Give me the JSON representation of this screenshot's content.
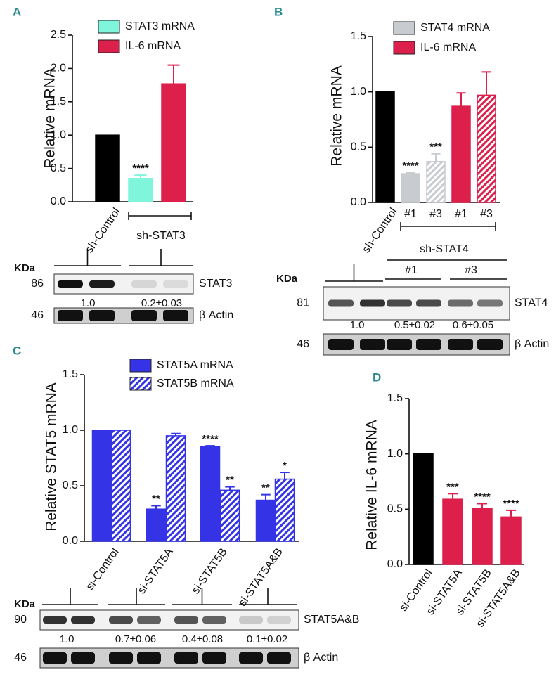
{
  "chart_data": [
    {
      "type": "bar",
      "panel_label": "A",
      "ylabel": "Relative mRNA",
      "categories": [
        "sh-Control",
        null,
        null
      ],
      "group_label": "sh-STAT3",
      "series": [
        {
          "values": [
            1.0,
            0.35,
            1.77
          ],
          "errors": [
            null,
            0.05,
            0.28
          ],
          "colors": [
            "#000000",
            "#7ff5dc",
            "#dc1f4b"
          ],
          "hatch": [
            false,
            false,
            false
          ],
          "stars": [
            null,
            "****",
            null
          ]
        }
      ],
      "legend": [
        {
          "name": "STAT3 mRNA",
          "color": "#7ff5dc",
          "hatch": false
        },
        {
          "name": "IL-6 mRNA",
          "color": "#dc1f4b",
          "hatch": false
        }
      ],
      "ylim": [
        0,
        2.5
      ],
      "yticks": [
        {
          "value": 0,
          "label": "0.0"
        },
        0.5,
        {
          "value": 1,
          "label": "1.0"
        },
        1.5,
        {
          "value": 2,
          "label": "2.0"
        },
        2.5
      ],
      "blot": {
        "kda_label": "KDa",
        "rows": [
          {
            "kda": "86",
            "protein": "STAT3"
          },
          {
            "kda": "46",
            "protein": "β Actin"
          }
        ],
        "quantification": [
          "1.0",
          "0.2±0.03"
        ]
      }
    },
    {
      "type": "bar",
      "panel_label": "B",
      "ylabel": "Relative mRNA",
      "categories": [
        "sh-Control",
        "#1",
        "#3",
        "#1",
        "#3"
      ],
      "series": [
        {
          "values": [
            1.0,
            0.26,
            0.37,
            0.87,
            0.97
          ],
          "errors": [
            null,
            0.01,
            0.07,
            0.12,
            0.21
          ],
          "colors": [
            "#000000",
            "#c8ccd0",
            "#c8ccd0",
            "#dc1f4b",
            "#dc1f4b"
          ],
          "hatch": [
            false,
            false,
            true,
            false,
            true
          ],
          "stars": [
            null,
            "****",
            "***",
            null,
            null
          ]
        }
      ],
      "legend": [
        {
          "name": "STAT4 mRNA",
          "color": "#c8ccd0",
          "hatch": false
        },
        {
          "name": "IL-6 mRNA",
          "color": "#dc1f4b",
          "hatch": false
        }
      ],
      "ylim": [
        0,
        1.5
      ],
      "yticks": [
        {
          "value": 0,
          "label": "0.0"
        },
        0.5,
        {
          "value": 1,
          "label": "1.0"
        },
        1.5
      ],
      "blot": {
        "kda_label": "KDa",
        "header": "sh-STAT4",
        "subgroups": [
          "#1",
          "#3"
        ],
        "rows": [
          {
            "kda": "81",
            "protein": "STAT4"
          },
          {
            "kda": "46",
            "protein": "β Actin"
          }
        ],
        "quantification": [
          "1.0",
          "0.5±0.02",
          "0.6±0.05"
        ]
      }
    },
    {
      "type": "bar",
      "panel_label": "C",
      "ylabel": "Relative STAT5 mRNA",
      "categories": [
        "si-Control",
        "si-STAT5A",
        "si-STAT5B",
        "si-STAT5A&B"
      ],
      "series": [
        {
          "values": [
            1.0,
            0.29,
            0.85,
            0.37
          ],
          "errors": [
            null,
            0.03,
            0.01,
            0.05
          ],
          "color": "#3434e6",
          "hatch": false,
          "stars": [
            null,
            "**",
            "****",
            "**"
          ]
        },
        {
          "values": [
            1.0,
            0.95,
            0.46,
            0.56
          ],
          "errors": [
            null,
            0.02,
            0.03,
            0.06
          ],
          "color": "#3434e6",
          "hatch": true,
          "stars": [
            null,
            null,
            "**",
            "*"
          ]
        }
      ],
      "legend": [
        {
          "name": "STAT5A mRNA",
          "color": "#3434e6",
          "hatch": false
        },
        {
          "name": "STAT5B mRNA",
          "color": "#3434e6",
          "hatch": true
        }
      ],
      "ylim": [
        0,
        1.5
      ],
      "yticks": [
        {
          "value": 0,
          "label": "0.0"
        },
        0.5,
        {
          "value": 1,
          "label": "1.0"
        },
        1.5
      ],
      "blot": {
        "kda_label": "KDa",
        "rows": [
          {
            "kda": "90",
            "protein": "STAT5A&B"
          },
          {
            "kda": "46",
            "protein": "β Actin"
          }
        ],
        "quantification": [
          "1.0",
          "0.7±0.06",
          "0.4±0.08",
          "0.1±0.02"
        ]
      }
    },
    {
      "type": "bar",
      "panel_label": "D",
      "ylabel": "Relative IL-6 mRNA",
      "categories": [
        "si-Control",
        "si-STAT5A",
        "si-STAT5B",
        "si-STAT5A&B"
      ],
      "series": [
        {
          "values": [
            1.0,
            0.59,
            0.51,
            0.43
          ],
          "errors": [
            null,
            0.05,
            0.04,
            0.06
          ],
          "colors": [
            "#000000",
            "#dc1f4b",
            "#dc1f4b",
            "#dc1f4b"
          ],
          "hatch": [
            false,
            false,
            false,
            false
          ],
          "stars": [
            null,
            "***",
            "****",
            "****"
          ]
        }
      ],
      "ylim": [
        0,
        1.5
      ],
      "yticks": [
        {
          "value": 0,
          "label": "0.0"
        },
        0.5,
        {
          "value": 1,
          "label": "1.0"
        },
        1.5
      ]
    }
  ]
}
